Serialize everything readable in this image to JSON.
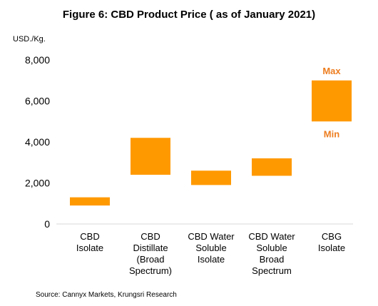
{
  "chart_data": {
    "type": "bar",
    "subtype": "floating-range",
    "title": "Figure 6: CBD Product Price ( as of January 2021)",
    "ylabel": "USD./Kg.",
    "xlabel": "",
    "ylim": [
      0,
      8000
    ],
    "yticks": [
      0,
      2000,
      4000,
      6000,
      8000
    ],
    "ytick_labels": [
      "0",
      "2,000",
      "4,000",
      "6,000",
      "8,000"
    ],
    "grid": false,
    "legend": "none",
    "bar_color": "#FF9900",
    "categories": [
      {
        "lines": [
          "CBD",
          "Isolate"
        ]
      },
      {
        "lines": [
          "CBD",
          "Distillate",
          "(Broad",
          "Spectrum)"
        ]
      },
      {
        "lines": [
          "CBD Water",
          "Soluble",
          "Isolate"
        ]
      },
      {
        "lines": [
          "CBD Water",
          "Soluble",
          "Broad",
          "Spectrum"
        ]
      },
      {
        "lines": [
          "CBG",
          "Isolate"
        ]
      }
    ],
    "series": [
      {
        "min": [
          900,
          2400,
          1900,
          2350,
          5000
        ],
        "max": [
          1300,
          4200,
          2600,
          3200,
          7000
        ]
      }
    ],
    "annotations": {
      "max_label": "Max",
      "min_label": "Min",
      "color": "#ED7D1F"
    }
  },
  "footer": {
    "source": "Source: Cannyx Markets, Krungsri Research"
  }
}
